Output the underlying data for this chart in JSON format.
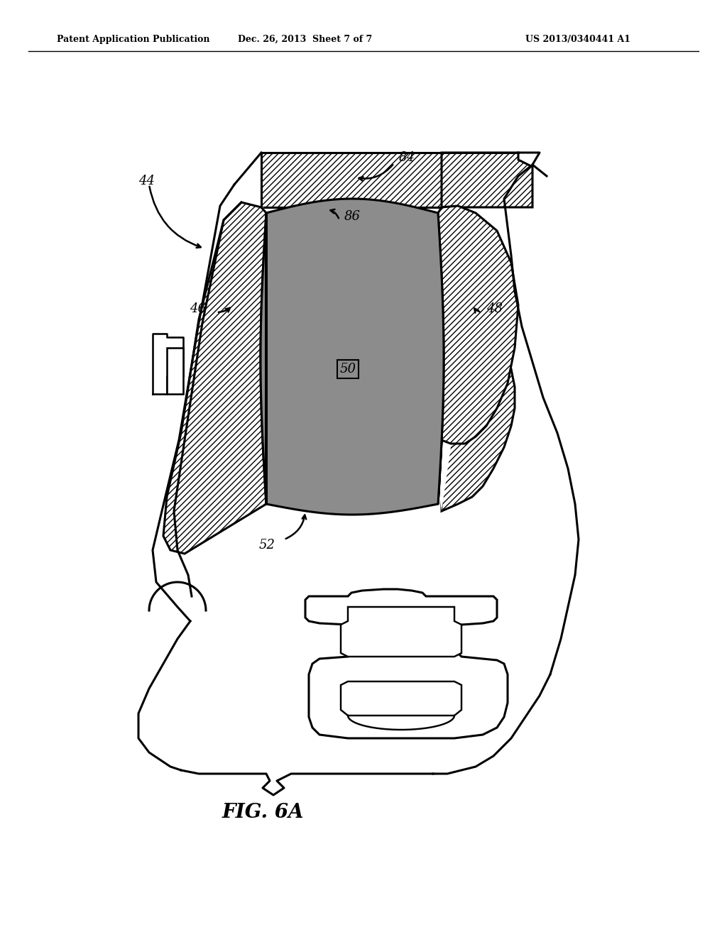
{
  "header_left": "Patent Application Publication",
  "header_center": "Dec. 26, 2013  Sheet 7 of 7",
  "header_right": "US 2013/0340441 A1",
  "fig_caption": "FIG. 6A",
  "bg": "#ffffff",
  "lc": "#000000",
  "gray_blade": "#909090",
  "lw": 2.2,
  "hatch": "////"
}
